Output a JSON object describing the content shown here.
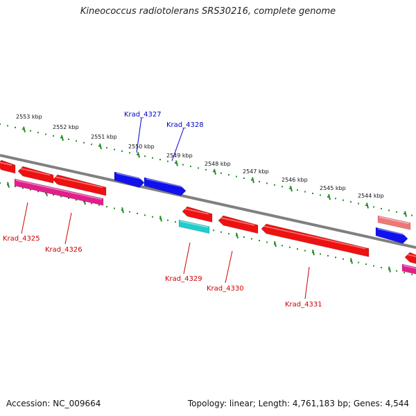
{
  "title": "Kineococcus radiotolerans SRS30216, complete genome",
  "accession": "Accession: NC_009664",
  "summary": "Topology: linear; Length: 4,761,183 bp; Genes: 4,544",
  "colors": {
    "axis": "#808080",
    "ruler": "#228b22",
    "forward_label": "#0000cc",
    "reverse_label": "#cc0000",
    "red_gene": "#ee1111",
    "blue_gene": "#1111ee",
    "pink_gene": "#e0208a",
    "cyan_gene": "#22cccc",
    "salmon_gene": "#ee7777"
  },
  "ruler": {
    "ticks": [
      "2553 kbp",
      "2552 kbp",
      "2551 kbp",
      "2550 kbp",
      "2549 kbp",
      "2548 kbp",
      "2547 kbp",
      "2546 kbp",
      "2545 kbp",
      "2544 kbp"
    ]
  },
  "genes": [
    {
      "label": "Krad_4325",
      "strand": "reverse"
    },
    {
      "label": "Krad_4326",
      "strand": "reverse"
    },
    {
      "label": "Krad_4327",
      "strand": "forward"
    },
    {
      "label": "Krad_4328",
      "strand": "forward"
    },
    {
      "label": "Krad_4329",
      "strand": "reverse"
    },
    {
      "label": "Krad_4330",
      "strand": "reverse"
    },
    {
      "label": "Krad_4331",
      "strand": "reverse"
    }
  ]
}
